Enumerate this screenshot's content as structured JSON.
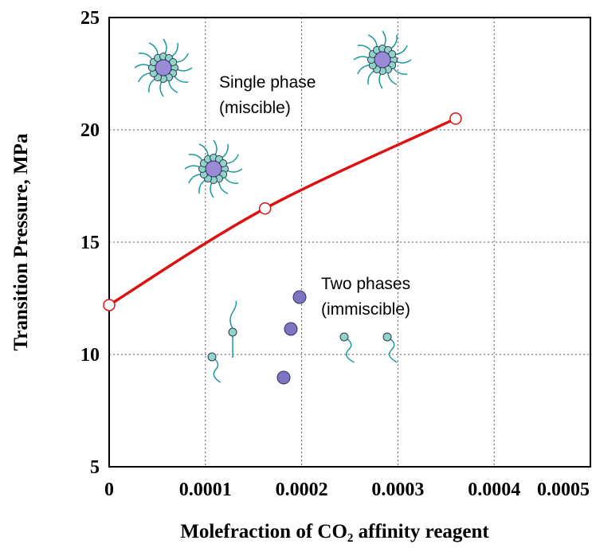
{
  "chart_data": {
    "type": "line",
    "xlabel": "Molefraction of CO₂ affinity reagent",
    "ylabel": "Transition Pressure, MPa",
    "annotations": [
      "Single phase",
      "(miscible)",
      "Two phases",
      "(immiscible)"
    ],
    "x": [
      0,
      0.000162,
      0.00036
    ],
    "series": [
      {
        "color": "#dd1111",
        "values": [
          12.2,
          16.5,
          20.5
        ]
      }
    ],
    "xlim": [
      0,
      0.0005
    ],
    "xticks": [
      0,
      0.0001,
      0.0002,
      0.0003,
      0.0004,
      0.0005
    ],
    "ylim": [
      5,
      25
    ],
    "yticks": [
      5,
      10,
      15,
      20,
      25
    ],
    "grid": true
  }
}
